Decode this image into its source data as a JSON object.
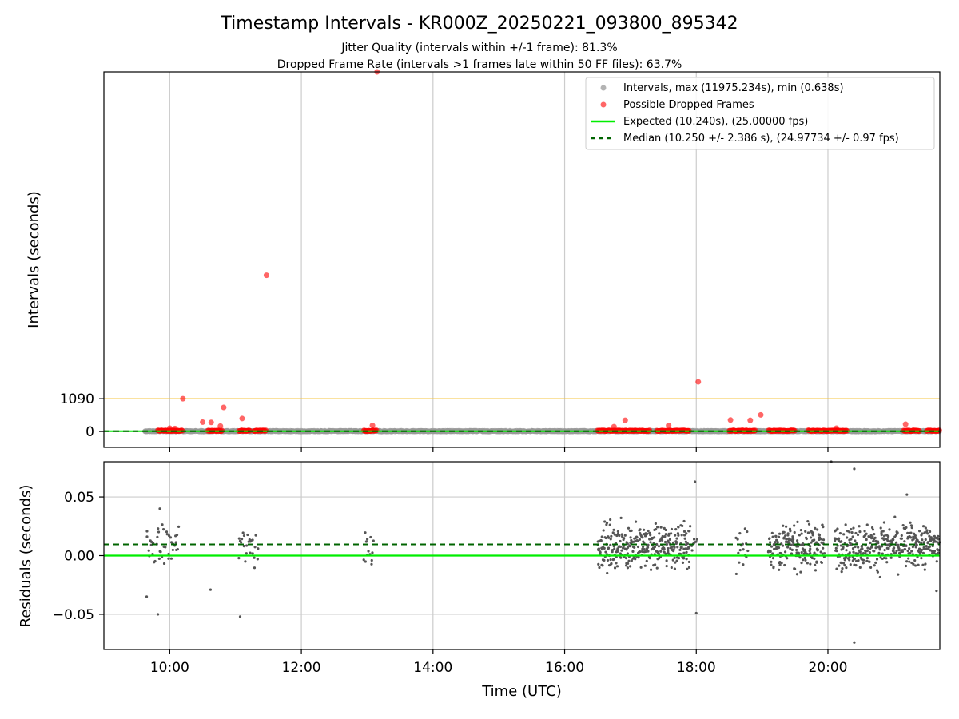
{
  "title": "Timestamp Intervals - KR000Z_20250221_093800_895342",
  "subtitle_lines": [
    "Jitter Quality (intervals within +/-1 frame): 81.3%",
    "Dropped Frame Rate (intervals >1 frames late within 50 FF files): 63.7%"
  ],
  "colors": {
    "expected": "#00ee00",
    "median": "#006400",
    "interval_points": "#999999",
    "dropped_points": "#ff0000",
    "residual_points": "#555555",
    "threshold_line": "#f5c542",
    "grid": "#cccccc"
  },
  "chart_data": [
    {
      "type": "scatter",
      "panel": "top",
      "ylabel": "Intervals (seconds)",
      "xlim": [
        9.0,
        21.7
      ],
      "ylim": [
        -530,
        11975.234
      ],
      "yticks": [
        0,
        1090
      ],
      "ytick_labels": [
        "0",
        "1090"
      ],
      "xticks": [
        10,
        12,
        14,
        16,
        18,
        20
      ],
      "grid": "vertical",
      "legend_position": "top-right",
      "legend": [
        "Intervals, max (11975.234s), min (0.638s)",
        "Possible Dropped Frames",
        "Expected (10.240s), (25.00000 fps)",
        "Median (10.250 +/- 2.386 s), (24.97734 +/- 0.97 fps)"
      ],
      "series": [
        {
          "name": "Intervals, max (11975.234s), min (0.638s)",
          "ranges": [
            [
              9.62,
              21.7
            ]
          ],
          "typical_value": 10.25
        },
        {
          "name": "Possible Dropped Frames",
          "points": [
            [
              13.15,
              11975
            ],
            [
              11.47,
              5200
            ],
            [
              18.03,
              1650
            ],
            [
              10.2,
              1090
            ],
            [
              10.82,
              800
            ],
            [
              18.98,
              550
            ],
            [
              11.1,
              430
            ],
            [
              18.52,
              380
            ],
            [
              18.82,
              370
            ],
            [
              16.92,
              370
            ],
            [
              10.5,
              310
            ],
            [
              10.63,
              300
            ],
            [
              17.58,
              200
            ],
            [
              21.18,
              240
            ],
            [
              13.08,
              200
            ],
            [
              16.75,
              160
            ],
            [
              10.77,
              180
            ],
            [
              20.13,
              110
            ],
            [
              10.0,
              110
            ],
            [
              10.08,
              100
            ]
          ],
          "clusters": [
            [
              9.82,
              10.2
            ],
            [
              10.58,
              10.8
            ],
            [
              11.05,
              11.22
            ],
            [
              11.28,
              11.47
            ],
            [
              12.95,
              13.15
            ],
            [
              16.5,
              17.0
            ],
            [
              17.0,
              17.3
            ],
            [
              17.4,
              17.9
            ],
            [
              18.5,
              18.9
            ],
            [
              19.1,
              19.5
            ],
            [
              19.7,
              20.3
            ],
            [
              21.15,
              21.4
            ],
            [
              21.5,
              21.7
            ]
          ]
        },
        {
          "name": "Expected (10.240s), (25.00000 fps)",
          "value": 10.24
        },
        {
          "name": "Median (10.250 +/- 2.386 s), (24.97734 +/- 0.97 fps)",
          "value": 10.25
        }
      ],
      "threshold_value": 1090
    },
    {
      "type": "scatter",
      "panel": "bottom",
      "ylabel": "Residuals (seconds)",
      "xlabel": "Time (UTC)",
      "xlim": [
        9.0,
        21.7
      ],
      "ylim": [
        -0.08,
        0.08
      ],
      "yticks": [
        0.05,
        0.0,
        -0.05
      ],
      "ytick_labels": [
        "0.05",
        "0.00",
        "−0.05"
      ],
      "xticks": [
        10,
        12,
        14,
        16,
        18,
        20
      ],
      "xtick_labels": [
        "10:00",
        "12:00",
        "14:00",
        "16:00",
        "18:00",
        "20:00"
      ],
      "grid": "both",
      "series": [
        {
          "name": "residuals",
          "ranges": [
            [
              9.65,
              10.15
            ],
            [
              11.05,
              11.35
            ],
            [
              12.95,
              13.1
            ],
            [
              16.5,
              17.9
            ],
            [
              17.9,
              18.02
            ],
            [
              18.6,
              18.8
            ],
            [
              19.1,
              19.95
            ],
            [
              20.1,
              21.7
            ]
          ],
          "spread": 0.018,
          "center": 0.008,
          "outliers": [
            [
              9.82,
              -0.05
            ],
            [
              9.65,
              -0.035
            ],
            [
              10.62,
              -0.029
            ],
            [
              11.07,
              -0.052
            ],
            [
              18.0,
              -0.049
            ],
            [
              17.98,
              0.063
            ],
            [
              20.05,
              0.08
            ],
            [
              20.4,
              0.074
            ],
            [
              20.4,
              -0.074
            ],
            [
              21.2,
              0.052
            ],
            [
              9.85,
              0.04
            ],
            [
              21.65,
              -0.03
            ]
          ]
        }
      ],
      "expected_residual": 0.0,
      "median_residual": 0.0095
    }
  ]
}
